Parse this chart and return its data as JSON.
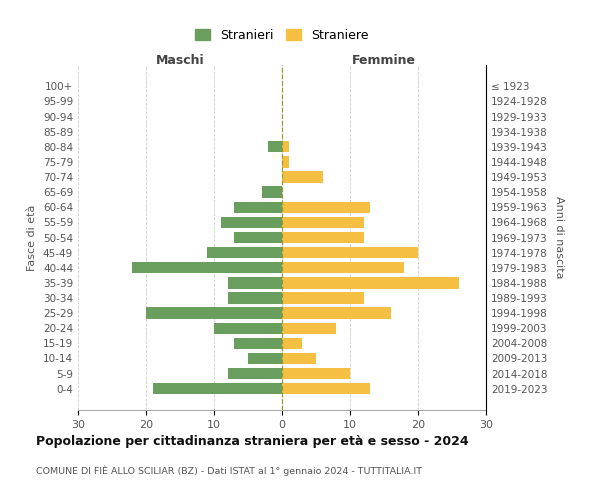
{
  "age_groups": [
    "0-4",
    "5-9",
    "10-14",
    "15-19",
    "20-24",
    "25-29",
    "30-34",
    "35-39",
    "40-44",
    "45-49",
    "50-54",
    "55-59",
    "60-64",
    "65-69",
    "70-74",
    "75-79",
    "80-84",
    "85-89",
    "90-94",
    "95-99",
    "100+"
  ],
  "birth_years": [
    "2019-2023",
    "2014-2018",
    "2009-2013",
    "2004-2008",
    "1999-2003",
    "1994-1998",
    "1989-1993",
    "1984-1988",
    "1979-1983",
    "1974-1978",
    "1969-1973",
    "1964-1968",
    "1959-1963",
    "1954-1958",
    "1949-1953",
    "1944-1948",
    "1939-1943",
    "1934-1938",
    "1929-1933",
    "1924-1928",
    "≤ 1923"
  ],
  "maschi": [
    19,
    8,
    5,
    7,
    10,
    20,
    8,
    8,
    22,
    11,
    7,
    9,
    7,
    3,
    0,
    0,
    2,
    0,
    0,
    0,
    0
  ],
  "femmine": [
    13,
    10,
    5,
    3,
    8,
    16,
    12,
    26,
    18,
    20,
    12,
    12,
    13,
    0,
    6,
    1,
    1,
    0,
    0,
    0,
    0
  ],
  "maschi_color": "#6a9e5f",
  "femmine_color": "#f5c042",
  "background_color": "#ffffff",
  "grid_color": "#cccccc",
  "title": "Popolazione per cittadinanza straniera per età e sesso - 2024",
  "subtitle": "COMUNE DI FIÈ ALLO SCILIAR (BZ) - Dati ISTAT al 1° gennaio 2024 - TUTTITALIA.IT",
  "ylabel_left": "Fasce di età",
  "ylabel_right": "Anni di nascita",
  "xlabel_left": "Maschi",
  "xlabel_right": "Femmine",
  "legend_stranieri": "Stranieri",
  "legend_straniere": "Straniere",
  "xlim": 30
}
